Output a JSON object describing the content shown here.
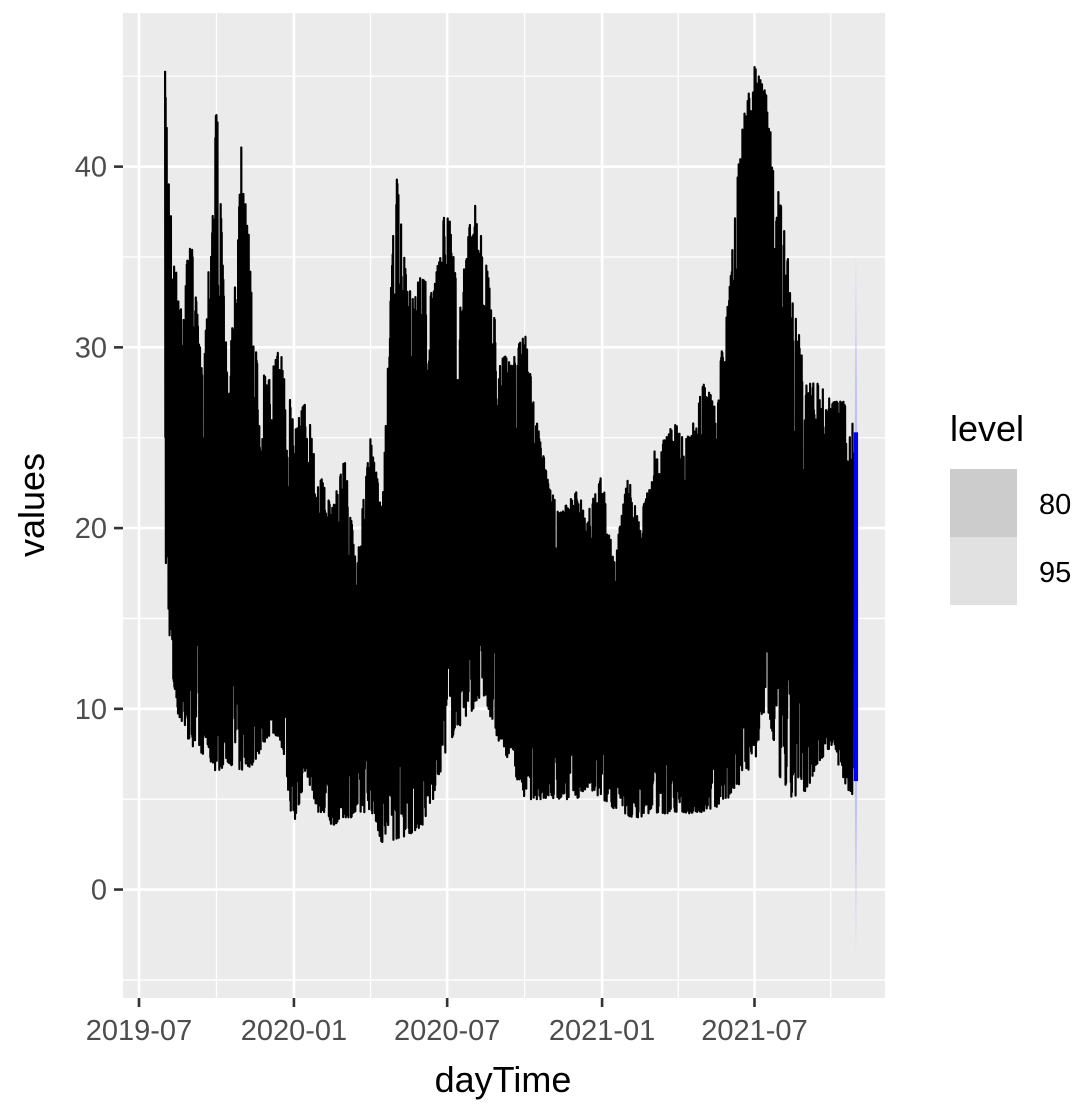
{
  "chart_data": {
    "type": "line",
    "title": "",
    "xlabel": "dayTime",
    "ylabel": "values",
    "x_range": [
      "2019-06-12",
      "2021-12-03"
    ],
    "ylim": [
      -6,
      48.5
    ],
    "x_ticks": [
      {
        "date": "2019-07-01",
        "label": "2019-07"
      },
      {
        "date": "2020-01-01",
        "label": "2020-01"
      },
      {
        "date": "2020-07-01",
        "label": "2020-07"
      },
      {
        "date": "2021-01-01",
        "label": "2021-01"
      },
      {
        "date": "2021-07-01",
        "label": "2021-07"
      }
    ],
    "y_ticks": [
      0,
      10,
      20,
      30,
      40
    ],
    "grid": true,
    "colors": {
      "panel": "#ebebeb",
      "grid": "#ffffff",
      "series": "#000000",
      "forecast": "#0000ff",
      "interval": "#b3b3ff"
    },
    "series": [
      {
        "name": "",
        "color": "#000000",
        "x": [
          "2019-08-01",
          "2019-08-10",
          "2019-08-20",
          "2019-09-01",
          "2019-09-15",
          "2019-10-01",
          "2019-10-15",
          "2019-11-01",
          "2019-11-15",
          "2019-12-01",
          "2019-12-15",
          "2020-01-01",
          "2020-01-15",
          "2020-02-01",
          "2020-02-15",
          "2020-03-01",
          "2020-03-15",
          "2020-04-01",
          "2020-04-15",
          "2020-05-01",
          "2020-05-15",
          "2020-06-01",
          "2020-06-15",
          "2020-07-01",
          "2020-07-15",
          "2020-08-01",
          "2020-08-15",
          "2020-09-01",
          "2020-09-15",
          "2020-10-01",
          "2020-10-15",
          "2020-11-01",
          "2020-11-15",
          "2020-12-01",
          "2020-12-15",
          "2021-01-01",
          "2021-01-15",
          "2021-02-01",
          "2021-02-15",
          "2021-03-01",
          "2021-03-15",
          "2021-04-01",
          "2021-04-15",
          "2021-05-01",
          "2021-05-15",
          "2021-06-01",
          "2021-06-15",
          "2021-07-01",
          "2021-07-15",
          "2021-08-01",
          "2021-08-15",
          "2021-09-01",
          "2021-09-15",
          "2021-10-01",
          "2021-10-15",
          "2021-10-26"
        ],
        "low": [
          18.5,
          11,
          9,
          8,
          7.5,
          6.5,
          7,
          6.5,
          7,
          8.5,
          8.5,
          3.2,
          6.5,
          4,
          3.5,
          4,
          4,
          4.5,
          2.5,
          2.8,
          3,
          3.5,
          5,
          8,
          9,
          10,
          10.5,
          8,
          7,
          5,
          5,
          5,
          5,
          5,
          5.5,
          5,
          4.5,
          4,
          4,
          4.3,
          4.2,
          4.3,
          4.2,
          4.3,
          4.5,
          5,
          6,
          7,
          10,
          6,
          5,
          5.5,
          7,
          8,
          6,
          5
        ],
        "high": [
          45.3,
          35,
          33,
          36,
          28,
          44,
          27,
          43,
          30,
          28,
          30,
          26,
          27,
          23,
          21,
          24,
          18,
          25,
          21,
          40,
          33,
          34,
          33,
          38.5,
          32,
          38.5,
          35,
          30,
          29,
          31,
          26,
          22,
          21,
          22,
          21,
          23,
          18,
          23,
          20,
          24,
          25,
          26,
          25,
          28,
          27,
          33,
          42,
          45.6,
          44,
          38,
          33,
          28,
          28,
          27,
          27,
          26
        ]
      }
    ],
    "forecast": {
      "x": [
        "2021-10-27",
        "2021-11-01"
      ],
      "mean_range": [
        6,
        25.3
      ],
      "interval_80": [
        0.5,
        31
      ],
      "interval_95": [
        -3.5,
        35
      ]
    },
    "legend": {
      "title": "level",
      "position": "right",
      "entries": [
        {
          "label": "80",
          "fill": "#cccccc"
        },
        {
          "label": "95",
          "fill": "#e1e1e1"
        }
      ]
    }
  }
}
